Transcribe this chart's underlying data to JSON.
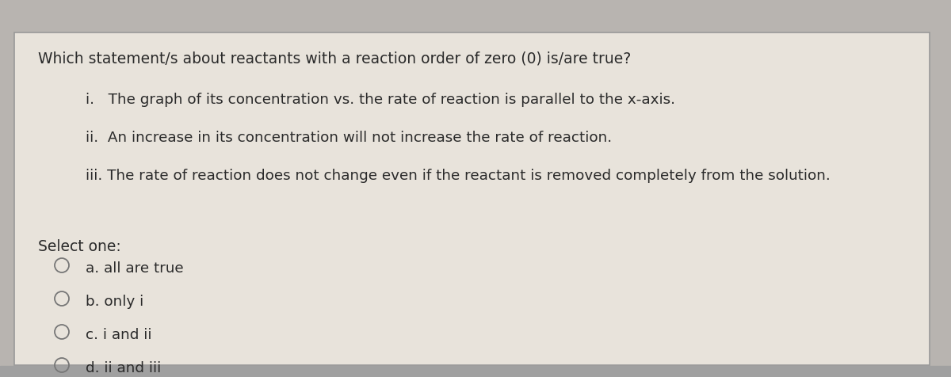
{
  "bg_outer": "#b8b4b0",
  "card_bg": "#e8e3db",
  "border_color": "#999999",
  "text_color": "#2a2a2a",
  "title": "Which statement/s about reactants with a reaction order of zero (0) is/are true?",
  "stmt_i": "i.   The graph of its concentration vs. the rate of reaction is parallel to the x-axis.",
  "stmt_ii": "ii.  An increase in its concentration will not increase the rate of reaction.",
  "stmt_iii": "iii. The rate of reaction does not change even if the reactant is removed completely from the solution.",
  "select_label": "Select one:",
  "options": [
    "a. all are true",
    "b. only i",
    "c. i and ii",
    "d. ii and iii"
  ],
  "title_fontsize": 13.5,
  "statement_fontsize": 13.2,
  "option_fontsize": 13.2,
  "select_fontsize": 13.5,
  "circle_color": "#777777"
}
